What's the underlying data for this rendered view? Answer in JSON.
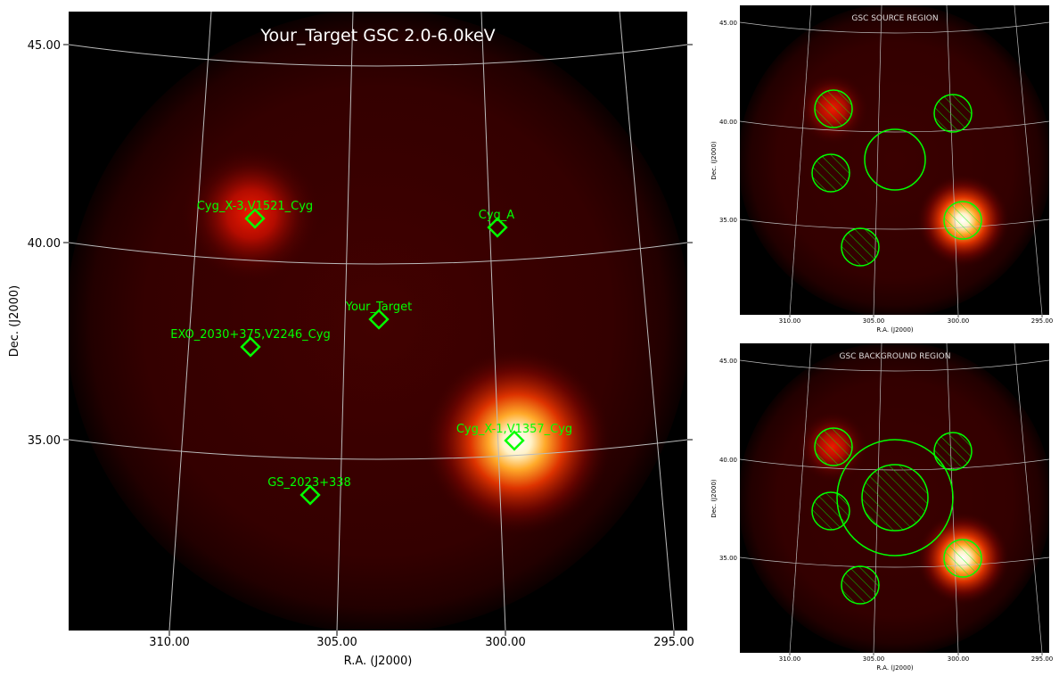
{
  "main_panel": {
    "title": "Your_Target GSC 2.0-6.0keV",
    "xlabel": "R.A. (J2000)",
    "ylabel": "Dec. (J2000)",
    "ra_ticks": [
      "310.00",
      "305.00",
      "300.00",
      "295.00"
    ],
    "dec_ticks": [
      "45.00",
      "40.00",
      "35.00"
    ],
    "sources": [
      {
        "name": "Cyg_X-3,V1521_Cyg"
      },
      {
        "name": "Cyg_A"
      },
      {
        "name": "Your_Target"
      },
      {
        "name": "EXO_2030+375,V2246_Cyg"
      },
      {
        "name": "Cyg_X-1,V1357_Cyg"
      },
      {
        "name": "GS_2023+338"
      }
    ],
    "marker_color": "#00ff00"
  },
  "source_panel": {
    "title": "GSC SOURCE REGION",
    "xlabel": "R.A. (J2000)",
    "ylabel": "Dec. (J2000)",
    "ra_ticks": [
      "310.00",
      "305.00",
      "300.00",
      "295.00"
    ],
    "dec_ticks": [
      "45.00",
      "40.00",
      "35.00"
    ]
  },
  "background_panel": {
    "title": "GSC BACKGROUND REGION",
    "xlabel": "R.A. (J2000)",
    "ylabel": "Dec. (J2000)",
    "ra_ticks": [
      "310.00",
      "305.00",
      "300.00",
      "295.00"
    ],
    "dec_ticks": [
      "45.00",
      "40.00",
      "35.00"
    ]
  }
}
